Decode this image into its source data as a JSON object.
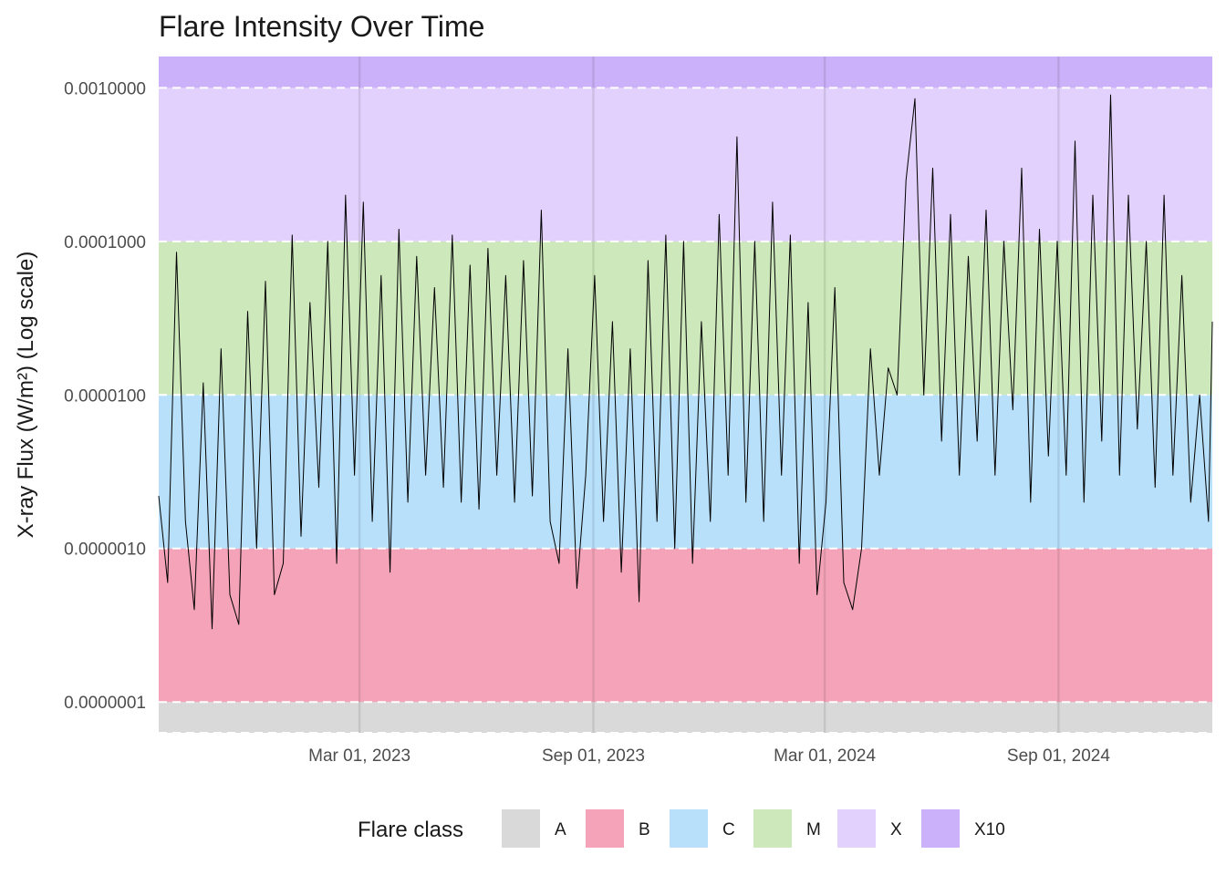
{
  "chart_data": {
    "type": "line",
    "title": "Flare Intensity Over Time",
    "xlabel": "",
    "ylabel": "X-ray Flux (W/m²) (Log scale)",
    "y_scale": "log10",
    "ylim": [
      6.3e-08,
      0.0016
    ],
    "xlim": [
      "2022-09-24",
      "2024-12-31"
    ],
    "x_ticks": [
      {
        "date": "2023-03-01",
        "label": "Mar 01, 2023"
      },
      {
        "date": "2023-09-01",
        "label": "Sep 01, 2023"
      },
      {
        "date": "2024-03-01",
        "label": "Mar 01, 2024"
      },
      {
        "date": "2024-09-01",
        "label": "Sep 01, 2024"
      }
    ],
    "y_ticks": [
      {
        "value": 1e-07,
        "label": "0.0000001"
      },
      {
        "value": 1e-06,
        "label": "0.0000010"
      },
      {
        "value": 1e-05,
        "label": "0.0000100"
      },
      {
        "value": 0.0001,
        "label": "0.0001000"
      },
      {
        "value": 0.001,
        "label": "0.0010000"
      }
    ],
    "grid": true,
    "threshold_lines": [
      1e-07,
      1e-06,
      1e-05,
      0.0001,
      0.001
    ],
    "bands": [
      {
        "class": "A",
        "from": 6.3e-08,
        "to": 1e-07,
        "color": "#d9d9d9"
      },
      {
        "class": "B",
        "from": 1e-07,
        "to": 1e-06,
        "color": "#f4a3b8"
      },
      {
        "class": "C",
        "from": 1e-06,
        "to": 1e-05,
        "color": "#b8e0fb"
      },
      {
        "class": "M",
        "from": 1e-05,
        "to": 0.0001,
        "color": "#cde9bb"
      },
      {
        "class": "X",
        "from": 0.0001,
        "to": 0.001,
        "color": "#e2d1fc"
      },
      {
        "class": "X10",
        "from": 0.001,
        "to": 0.0016,
        "color": "#cbb1f9"
      }
    ],
    "legend": {
      "title": "Flare class",
      "position": "bottom",
      "items": [
        {
          "label": "A",
          "color": "#d9d9d9"
        },
        {
          "label": "B",
          "color": "#f4a3b8"
        },
        {
          "label": "C",
          "color": "#b8e0fb"
        },
        {
          "label": "M",
          "color": "#cde9bb"
        },
        {
          "label": "X",
          "color": "#e2d1fc"
        },
        {
          "label": "X10",
          "color": "#cbb1f9"
        }
      ]
    },
    "series": [
      {
        "color": "#000000",
        "points": [
          [
            "2022-09-24",
            2.2e-06
          ],
          [
            "2022-10-01",
            6e-07
          ],
          [
            "2022-10-08",
            8.5e-05
          ],
          [
            "2022-10-15",
            1.5e-06
          ],
          [
            "2022-10-22",
            4e-07
          ],
          [
            "2022-10-29",
            1.2e-05
          ],
          [
            "2022-11-05",
            3e-07
          ],
          [
            "2022-11-12",
            2e-05
          ],
          [
            "2022-11-19",
            5e-07
          ],
          [
            "2022-11-26",
            3.2e-07
          ],
          [
            "2022-12-03",
            3.5e-05
          ],
          [
            "2022-12-10",
            1e-06
          ],
          [
            "2022-12-17",
            5.5e-05
          ],
          [
            "2022-12-24",
            5e-07
          ],
          [
            "2022-12-31",
            8e-07
          ],
          [
            "2023-01-07",
            0.00011
          ],
          [
            "2023-01-14",
            1.2e-06
          ],
          [
            "2023-01-21",
            4e-05
          ],
          [
            "2023-01-28",
            2.5e-06
          ],
          [
            "2023-02-04",
            0.0001
          ],
          [
            "2023-02-11",
            8e-07
          ],
          [
            "2023-02-18",
            0.0002
          ],
          [
            "2023-02-25",
            3e-06
          ],
          [
            "2023-03-04",
            0.00018
          ],
          [
            "2023-03-11",
            1.5e-06
          ],
          [
            "2023-03-18",
            6e-05
          ],
          [
            "2023-03-25",
            7e-07
          ],
          [
            "2023-04-01",
            0.00012
          ],
          [
            "2023-04-08",
            2e-06
          ],
          [
            "2023-04-15",
            8e-05
          ],
          [
            "2023-04-22",
            3e-06
          ],
          [
            "2023-04-29",
            5e-05
          ],
          [
            "2023-05-06",
            2.5e-06
          ],
          [
            "2023-05-13",
            0.00011
          ],
          [
            "2023-05-20",
            2e-06
          ],
          [
            "2023-05-27",
            7e-05
          ],
          [
            "2023-06-03",
            1.8e-06
          ],
          [
            "2023-06-10",
            9e-05
          ],
          [
            "2023-06-17",
            3e-06
          ],
          [
            "2023-06-24",
            6e-05
          ],
          [
            "2023-07-01",
            2e-06
          ],
          [
            "2023-07-08",
            7.5e-05
          ],
          [
            "2023-07-15",
            2.2e-06
          ],
          [
            "2023-07-22",
            0.00016
          ],
          [
            "2023-07-29",
            1.5e-06
          ],
          [
            "2023-08-05",
            8e-07
          ],
          [
            "2023-08-12",
            2e-05
          ],
          [
            "2023-08-19",
            5.5e-07
          ],
          [
            "2023-08-26",
            3e-06
          ],
          [
            "2023-09-02",
            6e-05
          ],
          [
            "2023-09-09",
            1.5e-06
          ],
          [
            "2023-09-16",
            3e-05
          ],
          [
            "2023-09-23",
            7e-07
          ],
          [
            "2023-09-30",
            2e-05
          ],
          [
            "2023-10-07",
            4.5e-07
          ],
          [
            "2023-10-14",
            7.5e-05
          ],
          [
            "2023-10-21",
            1.5e-06
          ],
          [
            "2023-10-28",
            0.00011
          ],
          [
            "2023-11-04",
            1e-06
          ],
          [
            "2023-11-11",
            0.0001
          ],
          [
            "2023-11-18",
            8e-07
          ],
          [
            "2023-11-25",
            3e-05
          ],
          [
            "2023-12-02",
            1.5e-06
          ],
          [
            "2023-12-09",
            0.00015
          ],
          [
            "2023-12-16",
            3e-06
          ],
          [
            "2023-12-23",
            0.00048
          ],
          [
            "2023-12-30",
            2e-06
          ],
          [
            "2024-01-06",
            0.0001
          ],
          [
            "2024-01-13",
            1.5e-06
          ],
          [
            "2024-01-20",
            0.00018
          ],
          [
            "2024-01-27",
            3e-06
          ],
          [
            "2024-02-03",
            0.00011
          ],
          [
            "2024-02-10",
            8e-07
          ],
          [
            "2024-02-17",
            4e-05
          ],
          [
            "2024-02-24",
            5e-07
          ],
          [
            "2024-03-02",
            2e-06
          ],
          [
            "2024-03-09",
            5e-05
          ],
          [
            "2024-03-16",
            6e-07
          ],
          [
            "2024-03-23",
            4e-07
          ],
          [
            "2024-03-30",
            1e-06
          ],
          [
            "2024-04-06",
            2e-05
          ],
          [
            "2024-04-13",
            3e-06
          ],
          [
            "2024-04-20",
            1.5e-05
          ],
          [
            "2024-04-27",
            1e-05
          ],
          [
            "2024-05-04",
            0.00025
          ],
          [
            "2024-05-11",
            0.00085
          ],
          [
            "2024-05-18",
            1e-05
          ],
          [
            "2024-05-25",
            0.0003
          ],
          [
            "2024-06-01",
            5e-06
          ],
          [
            "2024-06-08",
            0.00015
          ],
          [
            "2024-06-15",
            3e-06
          ],
          [
            "2024-06-22",
            8e-05
          ],
          [
            "2024-06-29",
            5e-06
          ],
          [
            "2024-07-06",
            0.00016
          ],
          [
            "2024-07-13",
            3e-06
          ],
          [
            "2024-07-20",
            0.0001
          ],
          [
            "2024-07-27",
            8e-06
          ],
          [
            "2024-08-03",
            0.0003
          ],
          [
            "2024-08-10",
            2e-06
          ],
          [
            "2024-08-17",
            0.00012
          ],
          [
            "2024-08-24",
            4e-06
          ],
          [
            "2024-08-31",
            0.0001
          ],
          [
            "2024-09-07",
            3e-06
          ],
          [
            "2024-09-14",
            0.00045
          ],
          [
            "2024-09-21",
            2e-06
          ],
          [
            "2024-09-28",
            0.0002
          ],
          [
            "2024-10-05",
            5e-06
          ],
          [
            "2024-10-12",
            0.0009
          ],
          [
            "2024-10-19",
            3e-06
          ],
          [
            "2024-10-26",
            0.0002
          ],
          [
            "2024-11-02",
            6e-06
          ],
          [
            "2024-11-09",
            0.0001
          ],
          [
            "2024-11-16",
            2.5e-06
          ],
          [
            "2024-11-23",
            0.0002
          ],
          [
            "2024-11-30",
            3e-06
          ],
          [
            "2024-12-07",
            6e-05
          ],
          [
            "2024-12-14",
            2e-06
          ],
          [
            "2024-12-21",
            1e-05
          ],
          [
            "2024-12-28",
            1.5e-06
          ],
          [
            "2024-12-31",
            3e-05
          ]
        ]
      }
    ]
  }
}
